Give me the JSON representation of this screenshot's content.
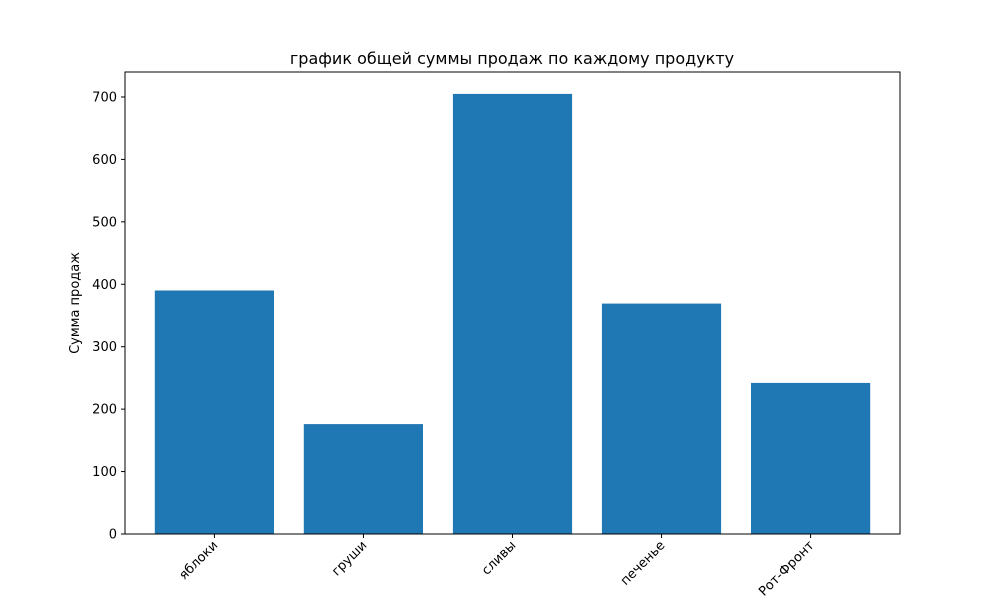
{
  "chart_data": {
    "type": "bar",
    "title": "график общей суммы продаж по каждому продукту",
    "xlabel": "",
    "ylabel": "Сумма продаж",
    "categories": [
      "яблоки",
      "груши",
      "сливы",
      "печенье",
      "Рот-Фронт"
    ],
    "values": [
      390,
      176,
      705,
      369,
      242
    ],
    "ylim": [
      0,
      740
    ],
    "yticks": [
      0,
      100,
      200,
      300,
      400,
      500,
      600,
      700
    ],
    "ytick_labels": [
      "0",
      "100",
      "200",
      "300",
      "400",
      "500",
      "600",
      "700"
    ],
    "bar_color": "#1f77b4",
    "grid": false,
    "legend": "none"
  }
}
